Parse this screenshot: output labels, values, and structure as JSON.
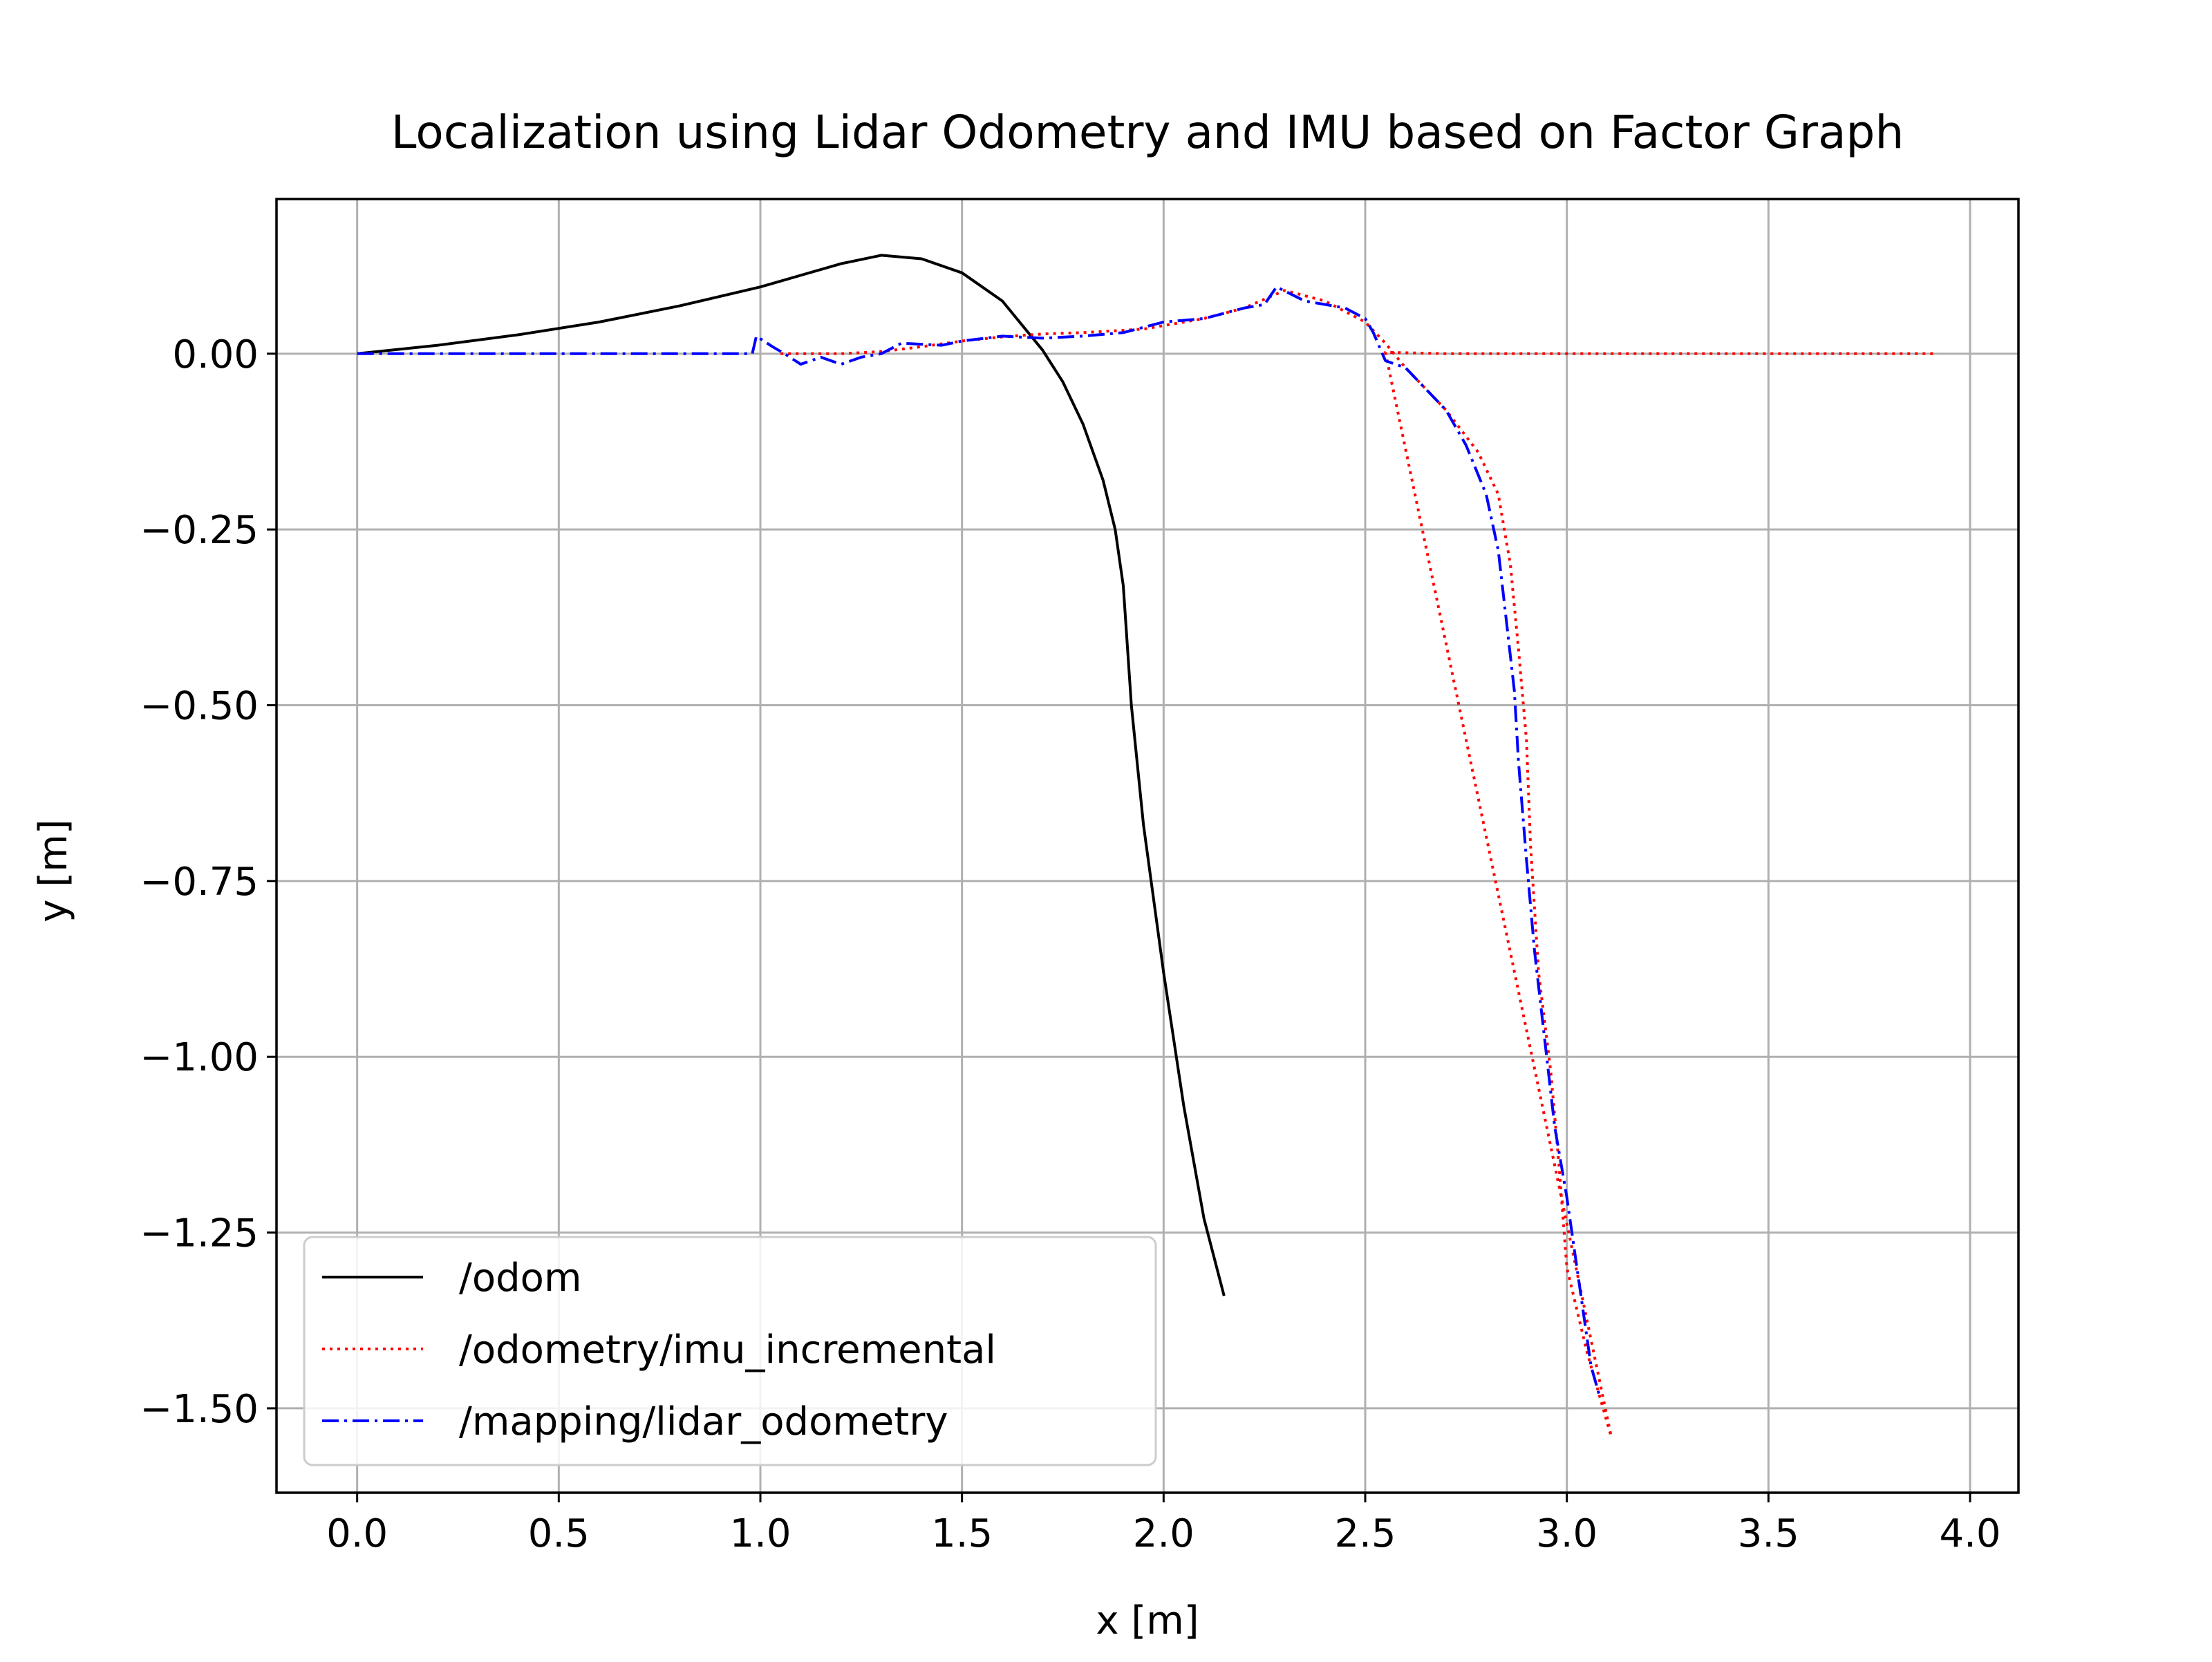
{
  "chart_data": {
    "type": "line",
    "title": "Localization using Lidar Odometry and IMU based on Factor Graph",
    "xlabel": "x [m]",
    "ylabel": "y [m]",
    "xlim": [
      -0.2,
      4.12
    ],
    "ylim": [
      -1.62,
      0.22
    ],
    "xticks": [
      0.0,
      0.5,
      1.0,
      1.5,
      2.0,
      2.5,
      3.0,
      3.5,
      4.0
    ],
    "xtick_labels": [
      "0.0",
      "0.5",
      "1.0",
      "1.5",
      "2.0",
      "2.5",
      "3.0",
      "3.5",
      "4.0"
    ],
    "yticks": [
      0.0,
      -0.25,
      -0.5,
      -0.75,
      -1.0,
      -1.25,
      -1.5
    ],
    "ytick_labels": [
      "0.00",
      "−0.25",
      "−0.50",
      "−0.75",
      "−1.00",
      "−1.25",
      "−1.50"
    ],
    "grid": true,
    "legend_position": "lower-left",
    "series": [
      {
        "name": "/odom",
        "color": "#000000",
        "style": "solid",
        "points": [
          [
            0.0,
            0.0
          ],
          [
            0.2,
            0.012
          ],
          [
            0.4,
            0.027
          ],
          [
            0.6,
            0.045
          ],
          [
            0.8,
            0.068
          ],
          [
            1.0,
            0.095
          ],
          [
            1.2,
            0.128
          ],
          [
            1.3,
            0.14
          ],
          [
            1.4,
            0.135
          ],
          [
            1.5,
            0.115
          ],
          [
            1.6,
            0.075
          ],
          [
            1.7,
            0.005
          ],
          [
            1.75,
            -0.04
          ],
          [
            1.8,
            -0.1
          ],
          [
            1.85,
            -0.18
          ],
          [
            1.88,
            -0.25
          ],
          [
            1.9,
            -0.33
          ],
          [
            1.92,
            -0.5
          ],
          [
            1.95,
            -0.67
          ],
          [
            2.0,
            -0.88
          ],
          [
            2.05,
            -1.07
          ],
          [
            2.1,
            -1.23
          ],
          [
            2.15,
            -1.34
          ]
        ]
      },
      {
        "name": "/odometry/imu_incremental",
        "color": "#ff0000",
        "style": "dotted",
        "points": [
          [
            1.05,
            0.0
          ],
          [
            1.2,
            0.0
          ],
          [
            1.3,
            0.003
          ],
          [
            1.4,
            0.01
          ],
          [
            1.5,
            0.018
          ],
          [
            1.6,
            0.024
          ],
          [
            1.7,
            0.028
          ],
          [
            1.8,
            0.03
          ],
          [
            1.95,
            0.035
          ],
          [
            2.1,
            0.05
          ],
          [
            2.2,
            0.065
          ],
          [
            2.3,
            0.09
          ],
          [
            2.4,
            0.075
          ],
          [
            2.5,
            0.045
          ],
          [
            2.55,
            0.015
          ],
          [
            2.6,
            -0.02
          ],
          [
            2.7,
            -0.08
          ],
          [
            2.78,
            -0.14
          ],
          [
            2.83,
            -0.2
          ],
          [
            2.86,
            -0.3
          ],
          [
            2.88,
            -0.42
          ],
          [
            2.9,
            -0.55
          ],
          [
            2.91,
            -0.7
          ],
          [
            2.93,
            -0.88
          ],
          [
            2.96,
            -1.02
          ],
          [
            2.98,
            -1.15
          ],
          [
            3.0,
            -1.3
          ],
          [
            3.05,
            -1.42
          ],
          [
            3.11,
            -1.54
          ],
          [
            2.55,
            0.002
          ],
          [
            2.7,
            0.0
          ],
          [
            3.0,
            0.0
          ],
          [
            3.5,
            0.0
          ],
          [
            3.92,
            0.0
          ]
        ]
      },
      {
        "name": "/mapping/lidar_odometry",
        "color": "#0000ff",
        "style": "dashdot",
        "points": [
          [
            0.0,
            0.0
          ],
          [
            0.3,
            0.0
          ],
          [
            0.6,
            0.0
          ],
          [
            0.98,
            0.0
          ],
          [
            0.99,
            0.025
          ],
          [
            1.03,
            0.01
          ],
          [
            1.06,
            0.0
          ],
          [
            1.1,
            -0.015
          ],
          [
            1.15,
            -0.005
          ],
          [
            1.2,
            -0.015
          ],
          [
            1.25,
            -0.005
          ],
          [
            1.3,
            0.0
          ],
          [
            1.35,
            0.015
          ],
          [
            1.45,
            0.012
          ],
          [
            1.5,
            0.018
          ],
          [
            1.6,
            0.025
          ],
          [
            1.7,
            0.022
          ],
          [
            1.8,
            0.025
          ],
          [
            1.9,
            0.03
          ],
          [
            2.0,
            0.045
          ],
          [
            2.1,
            0.05
          ],
          [
            2.2,
            0.065
          ],
          [
            2.25,
            0.07
          ],
          [
            2.28,
            0.095
          ],
          [
            2.35,
            0.075
          ],
          [
            2.45,
            0.065
          ],
          [
            2.5,
            0.05
          ],
          [
            2.52,
            0.03
          ],
          [
            2.55,
            -0.01
          ],
          [
            2.6,
            -0.02
          ],
          [
            2.65,
            -0.05
          ],
          [
            2.7,
            -0.08
          ],
          [
            2.75,
            -0.13
          ],
          [
            2.8,
            -0.2
          ],
          [
            2.83,
            -0.28
          ],
          [
            2.85,
            -0.38
          ],
          [
            2.87,
            -0.48
          ],
          [
            2.88,
            -0.58
          ],
          [
            2.9,
            -0.72
          ],
          [
            2.92,
            -0.85
          ],
          [
            2.95,
            -1.0
          ],
          [
            2.97,
            -1.1
          ],
          [
            3.0,
            -1.2
          ],
          [
            3.03,
            -1.32
          ],
          [
            3.06,
            -1.44
          ],
          [
            3.08,
            -1.48
          ]
        ]
      }
    ]
  }
}
